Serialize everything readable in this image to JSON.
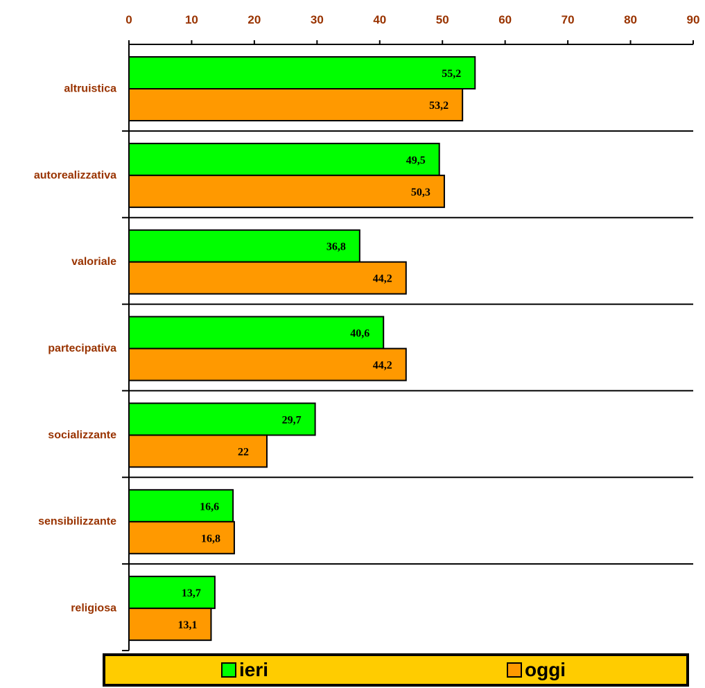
{
  "chart_data": {
    "type": "bar",
    "orientation": "horizontal",
    "categories": [
      "altruistica",
      "autorealizzativa",
      "valoriale",
      "partecipativa",
      "socializzante",
      "sensibilizzante",
      "religiosa"
    ],
    "series": [
      {
        "name": "ieri",
        "color": "#00ff00",
        "values": [
          55.2,
          49.5,
          36.8,
          40.6,
          29.7,
          16.6,
          13.7
        ],
        "labels": [
          "55,2",
          "49,5",
          "36,8",
          "40,6",
          "29,7",
          "16,6",
          "13,7"
        ]
      },
      {
        "name": "oggi",
        "color": "#ff9900",
        "values": [
          53.2,
          50.3,
          44.2,
          44.2,
          22,
          16.8,
          13.1
        ],
        "labels": [
          "53,2",
          "50,3",
          "44,2",
          "44,2",
          "22",
          "16,8",
          "13,1"
        ]
      }
    ],
    "xlim": [
      0,
      90
    ],
    "xticks": [
      "0",
      "10",
      "20",
      "30",
      "40",
      "50",
      "60",
      "70",
      "80",
      "90"
    ],
    "x_axis_position": "top",
    "grid": "horizontal category separators",
    "legend_position": "bottom",
    "legend_background": "#ffcc00",
    "tick_label_color": "#993300",
    "title": "",
    "xlabel": "",
    "ylabel": ""
  }
}
